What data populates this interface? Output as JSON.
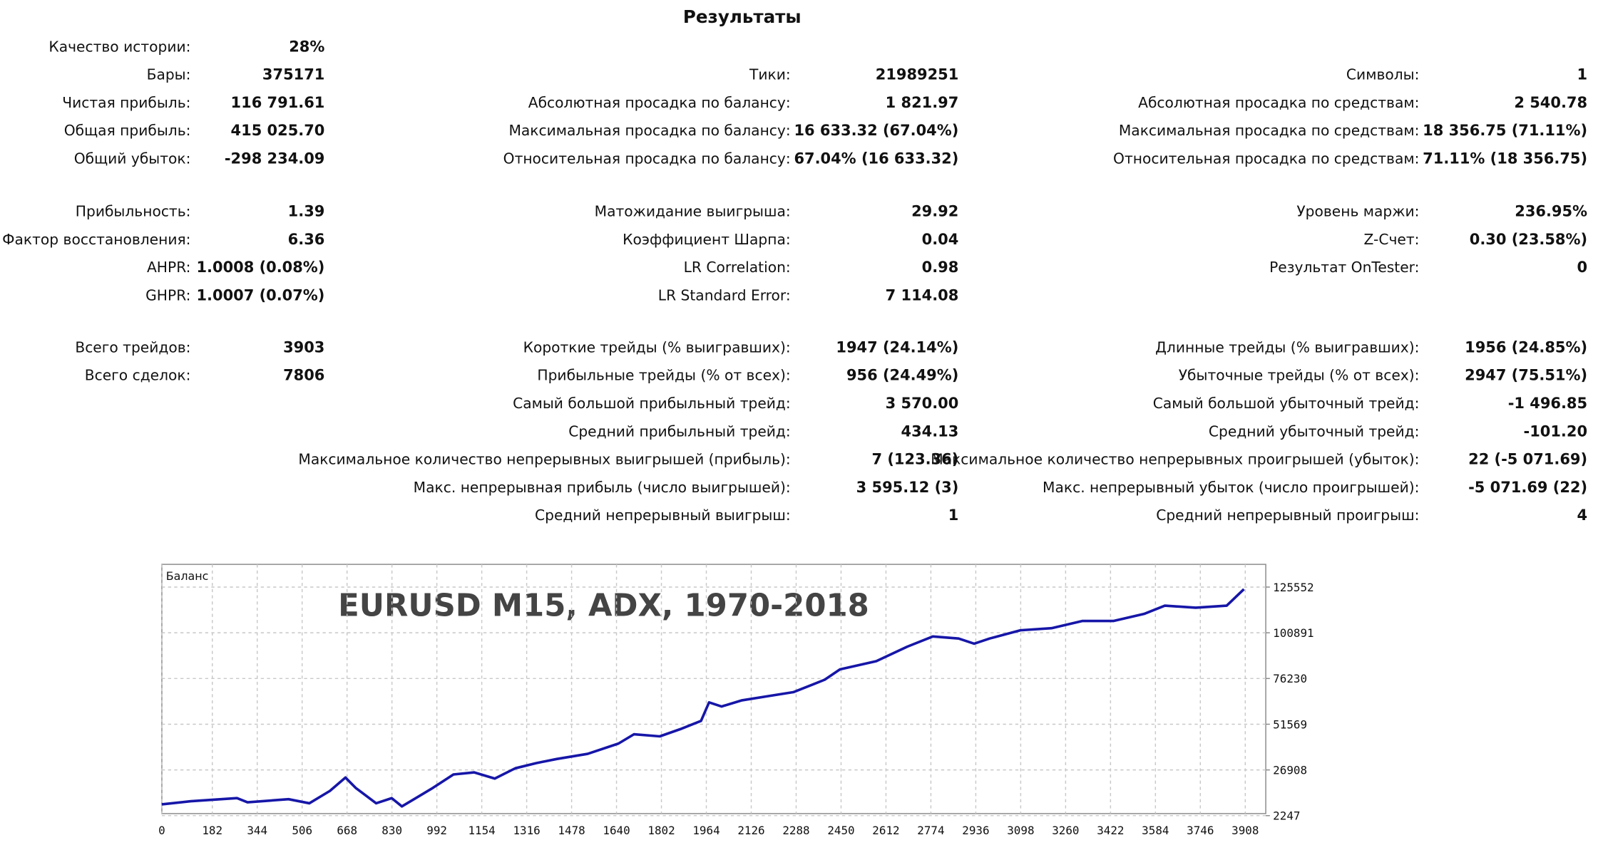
{
  "title": "Результаты",
  "sections": [
    {
      "columns": [
        [
          {
            "label": "Качество истории:",
            "value": "28%"
          },
          {
            "label": "Бары:",
            "value": "375171"
          },
          {
            "label": "Чистая прибыль:",
            "value": "116 791.61"
          },
          {
            "label": "Общая прибыль:",
            "value": "415 025.70"
          },
          {
            "label": "Общий убыток:",
            "value": "-298 234.09"
          }
        ],
        [
          {
            "label": "Тики:",
            "value": "21989251"
          },
          {
            "label": "Абсолютная просадка по балансу:",
            "value": "1 821.97"
          },
          {
            "label": "Максимальная просадка по балансу:",
            "value": "16 633.32 (67.04%)"
          },
          {
            "label": "Относительная просадка по балансу:",
            "value": "67.04% (16 633.32)"
          }
        ],
        [
          {
            "label": "Символы:",
            "value": "1"
          },
          {
            "label": "Абсолютная просадка по средствам:",
            "value": "2 540.78"
          },
          {
            "label": "Максимальная просадка по средствам:",
            "value": "18 356.75 (71.11%)"
          },
          {
            "label": "Относительная просадка по средствам:",
            "value": "71.11% (18 356.75)"
          }
        ]
      ]
    },
    {
      "columns": [
        [
          {
            "label": "Прибыльность:",
            "value": "1.39"
          },
          {
            "label": "Фактор восстановления:",
            "value": "6.36"
          },
          {
            "label": "AHPR:",
            "value": "1.0008 (0.08%)"
          },
          {
            "label": "GHPR:",
            "value": "1.0007 (0.07%)"
          }
        ],
        [
          {
            "label": "Матожидание выигрыша:",
            "value": "29.92"
          },
          {
            "label": "Коэффициент Шарпа:",
            "value": "0.04"
          },
          {
            "label": "LR Correlation:",
            "value": "0.98"
          },
          {
            "label": "LR Standard Error:",
            "value": "7 114.08"
          }
        ],
        [
          {
            "label": "Уровень маржи:",
            "value": "236.95%"
          },
          {
            "label": "Z-Счет:",
            "value": "0.30 (23.58%)"
          },
          {
            "label": "Результат OnTester:",
            "value": "0"
          }
        ]
      ]
    },
    {
      "columns": [
        [
          {
            "label": "Всего трейдов:",
            "value": "3903"
          },
          {
            "label": "Всего сделок:",
            "value": "7806"
          }
        ],
        [
          {
            "label": "Короткие трейды (% выигравших):",
            "value": "1947 (24.14%)"
          },
          {
            "label": "Прибыльные трейды (% от всех):",
            "value": "956 (24.49%)"
          },
          {
            "label": "Самый большой прибыльный трейд:",
            "value": "3 570.00"
          },
          {
            "label": "Средний прибыльный трейд:",
            "value": "434.13"
          },
          {
            "label": "Максимальное количество непрерывных выигрышей (прибыль):",
            "value": "7 (123.36)"
          },
          {
            "label": "Макс. непрерывная прибыль (число выигрышей):",
            "value": "3 595.12 (3)"
          },
          {
            "label": "Средний непрерывный выигрыш:",
            "value": "1"
          }
        ],
        [
          {
            "label": "Длинные трейды (% выигравших):",
            "value": "1956 (24.85%)"
          },
          {
            "label": "Убыточные трейды (% от всех):",
            "value": "2947 (75.51%)"
          },
          {
            "label": "Самый большой убыточный трейд:",
            "value": "-1 496.85"
          },
          {
            "label": "Средний убыточный трейд:",
            "value": "-101.20"
          },
          {
            "label": "Максимальное количество непрерывных проигрышей (убыток):",
            "value": "22 (-5 071.69)"
          },
          {
            "label": "Макс. непрерывный убыток (число проигрышей):",
            "value": "-5 071.69 (22)"
          },
          {
            "label": "Средний непрерывный проигрыш:",
            "value": "4"
          }
        ]
      ]
    }
  ],
  "chart_data": {
    "type": "line",
    "title": "EURUSD M15, ADX, 1970-2018",
    "x": [
      0,
      104,
      271,
      309,
      457,
      532,
      606,
      662,
      699,
      773,
      829,
      866,
      922,
      978,
      1052,
      1127,
      1201,
      1275,
      1350,
      1424,
      1536,
      1647,
      1703,
      1796,
      1870,
      1945,
      1974,
      2019,
      2093,
      2186,
      2279,
      2391,
      2446,
      2577,
      2688,
      2781,
      2874,
      2930,
      2986,
      3097,
      3209,
      3320,
      3432,
      3543,
      3618,
      3729,
      3841,
      3903
    ],
    "series": [
      {
        "name": "Баланс",
        "color": "#1616a8",
        "values": [
          8356,
          10023,
          11689,
          9467,
          11133,
          8912,
          15577,
          22797,
          17243,
          8912,
          11689,
          7246,
          12244,
          17243,
          24463,
          25574,
          22241,
          27795,
          30572,
          32794,
          35571,
          41125,
          46124,
          45013,
          48901,
          53344,
          63341,
          61119,
          64452,
          66673,
          68895,
          75560,
          81114,
          85557,
          93333,
          98887,
          97776,
          94999,
          97776,
          102219,
          103330,
          107218,
          107218,
          111105,
          115549,
          114438,
          115549,
          124435
        ]
      }
    ],
    "xlim": [
      0,
      3982
    ],
    "ylim": [
      2247,
      137800
    ],
    "xticks": [
      0,
      182,
      344,
      506,
      668,
      830,
      992,
      1154,
      1316,
      1478,
      1640,
      1802,
      1964,
      2126,
      2288,
      2450,
      2612,
      2774,
      2936,
      3098,
      3260,
      3422,
      3584,
      3746,
      3908
    ],
    "yticks": [
      2247,
      26908,
      51569,
      76230,
      100891,
      125552
    ],
    "grid": true
  }
}
